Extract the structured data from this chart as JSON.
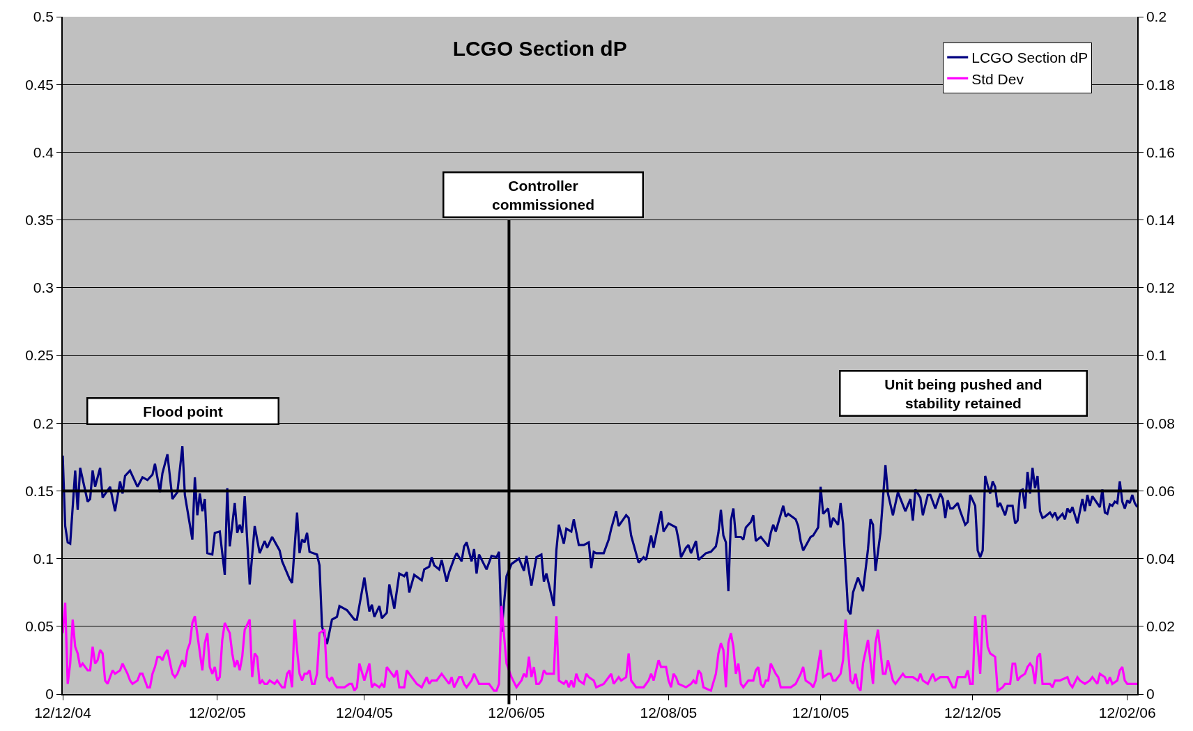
{
  "chart_data": {
    "type": "line",
    "title": "LCGO Section dP",
    "xlim": [
      "2004-12-12",
      "2006-02-16"
    ],
    "xticks": [
      {
        "value": "2004-12-12",
        "label": "12/12/04"
      },
      {
        "value": "2005-02-12",
        "label": "12/02/05"
      },
      {
        "value": "2005-04-12",
        "label": "12/04/05"
      },
      {
        "value": "2005-06-12",
        "label": "12/06/05"
      },
      {
        "value": "2005-08-12",
        "label": "12/08/05"
      },
      {
        "value": "2005-10-12",
        "label": "12/10/05"
      },
      {
        "value": "2005-12-12",
        "label": "12/12/05"
      },
      {
        "value": "2006-02-12",
        "label": "12/02/06"
      }
    ],
    "ylim": [
      0,
      0.5
    ],
    "yticks": [
      0,
      0.05,
      0.1,
      0.15,
      0.2,
      0.25,
      0.3,
      0.35,
      0.4,
      0.45,
      0.5
    ],
    "y2lim": [
      0,
      0.2
    ],
    "y2ticks": [
      0,
      0.02,
      0.04,
      0.06,
      0.08,
      0.1,
      0.12,
      0.14,
      0.16,
      0.18,
      0.2
    ],
    "grid": "y",
    "legend": "top right",
    "line_style": "solid",
    "ref_lines": [
      {
        "axis": "y",
        "value": 0.15,
        "color": "#000000"
      },
      {
        "axis": "x",
        "value": "2005-06-09",
        "color": "#000000"
      }
    ],
    "annotations": [
      "Flood point",
      "Controller commissioned",
      "Unit being pushed and stability retained"
    ],
    "series": [
      {
        "name": "LCGO Section dP",
        "color": "#000080",
        "x": [
          "2004-12-12",
          "2004-12-13",
          "2004-12-14",
          "2004-12-15",
          "2004-12-17",
          "2004-12-18",
          "2004-12-19",
          "2004-12-22",
          "2004-12-23",
          "2004-12-24",
          "2004-12-25",
          "2004-12-27",
          "2004-12-28",
          "2004-12-31",
          "2005-01-02",
          "2005-01-04",
          "2005-01-05",
          "2005-01-06",
          "2005-01-08",
          "2005-01-11",
          "2005-01-13",
          "2005-01-15",
          "2005-01-17",
          "2005-01-18",
          "2005-01-20",
          "2005-01-21",
          "2005-01-23",
          "2005-01-25",
          "2005-01-27",
          "2005-01-29",
          "2005-01-30",
          "2005-02-02",
          "2005-02-03",
          "2005-02-04",
          "2005-02-05",
          "2005-02-06",
          "2005-02-07",
          "2005-02-08",
          "2005-02-10",
          "2005-02-11",
          "2005-02-13",
          "2005-02-15",
          "2005-02-16",
          "2005-02-17",
          "2005-02-19",
          "2005-02-20",
          "2005-02-21",
          "2005-02-22",
          "2005-02-23",
          "2005-02-25",
          "2005-02-27",
          "2005-03-01",
          "2005-03-03",
          "2005-03-04",
          "2005-03-06",
          "2005-03-09",
          "2005-03-10",
          "2005-03-13",
          "2005-03-14",
          "2005-03-16",
          "2005-03-17",
          "2005-03-18",
          "2005-03-19",
          "2005-03-20",
          "2005-03-21",
          "2005-03-24",
          "2005-03-25",
          "2005-03-26",
          "2005-03-28",
          "2005-03-30",
          "2005-04-01",
          "2005-04-02",
          "2005-04-05",
          "2005-04-08",
          "2005-04-09",
          "2005-04-12",
          "2005-04-14",
          "2005-04-15",
          "2005-04-16",
          "2005-04-18",
          "2005-04-19",
          "2005-04-21",
          "2005-04-22",
          "2005-04-24",
          "2005-04-26",
          "2005-04-28",
          "2005-04-29",
          "2005-04-30",
          "2005-05-02",
          "2005-05-05",
          "2005-05-06",
          "2005-05-08",
          "2005-05-09",
          "2005-05-10",
          "2005-05-12",
          "2005-05-13",
          "2005-05-15",
          "2005-05-16",
          "2005-05-18",
          "2005-05-19",
          "2005-05-21",
          "2005-05-22",
          "2005-05-23",
          "2005-05-25",
          "2005-05-26",
          "2005-05-27",
          "2005-05-28",
          "2005-05-31",
          "2005-06-02",
          "2005-06-04",
          "2005-06-05",
          "2005-06-06",
          "2005-06-08",
          "2005-06-10",
          "2005-06-13",
          "2005-06-15",
          "2005-06-16",
          "2005-06-18",
          "2005-06-20",
          "2005-06-22",
          "2005-06-23",
          "2005-06-24",
          "2005-06-27",
          "2005-06-28",
          "2005-06-29",
          "2005-07-01",
          "2005-07-02",
          "2005-07-04",
          "2005-07-05",
          "2005-07-07",
          "2005-07-09",
          "2005-07-11",
          "2005-07-12",
          "2005-07-13",
          "2005-07-14",
          "2005-07-17",
          "2005-07-19",
          "2005-07-20",
          "2005-07-22",
          "2005-07-23",
          "2005-07-26",
          "2005-07-27",
          "2005-07-28",
          "2005-07-31",
          "2005-08-02",
          "2005-08-03",
          "2005-08-05",
          "2005-08-06",
          "2005-08-09",
          "2005-08-10",
          "2005-08-12",
          "2005-08-15",
          "2005-08-16",
          "2005-08-17",
          "2005-08-19",
          "2005-08-20",
          "2005-08-21",
          "2005-08-23",
          "2005-08-24",
          "2005-08-27",
          "2005-08-29",
          "2005-08-31",
          "2005-09-01",
          "2005-09-02",
          "2005-09-03",
          "2005-09-04",
          "2005-09-05",
          "2005-09-06",
          "2005-09-07",
          "2005-09-08",
          "2005-09-10",
          "2005-09-11",
          "2005-09-12",
          "2005-09-14",
          "2005-09-15",
          "2005-09-16",
          "2005-09-18",
          "2005-09-21",
          "2005-09-22",
          "2005-09-23",
          "2005-09-24",
          "2005-09-27",
          "2005-09-28",
          "2005-09-29",
          "2005-10-02",
          "2005-10-03",
          "2005-10-04",
          "2005-10-05",
          "2005-10-08",
          "2005-10-09",
          "2005-10-11",
          "2005-10-12",
          "2005-10-13",
          "2005-10-15",
          "2005-10-16",
          "2005-10-17",
          "2005-10-19",
          "2005-10-20",
          "2005-10-21",
          "2005-10-23",
          "2005-10-24",
          "2005-10-25",
          "2005-10-27",
          "2005-10-29",
          "2005-10-31",
          "2005-11-01",
          "2005-11-02",
          "2005-11-03",
          "2005-11-05",
          "2005-11-07",
          "2005-11-08",
          "2005-11-10",
          "2005-11-12",
          "2005-11-15",
          "2005-11-17",
          "2005-11-18",
          "2005-11-19",
          "2005-11-21",
          "2005-11-22",
          "2005-11-24",
          "2005-11-25",
          "2005-11-27",
          "2005-11-29",
          "2005-11-30",
          "2005-12-01",
          "2005-12-02",
          "2005-12-03",
          "2005-12-04",
          "2005-12-06",
          "2005-12-07",
          "2005-12-09",
          "2005-12-10",
          "2005-12-11",
          "2005-12-13",
          "2005-12-14",
          "2005-12-15",
          "2005-12-16",
          "2005-12-17",
          "2005-12-18",
          "2005-12-19",
          "2005-12-20",
          "2005-12-21",
          "2005-12-22",
          "2005-12-23",
          "2005-12-25",
          "2005-12-26",
          "2005-12-28",
          "2005-12-29",
          "2005-12-30",
          "2005-12-31",
          "2006-01-01",
          "2006-01-02",
          "2006-01-03",
          "2006-01-04",
          "2006-01-05",
          "2006-01-06",
          "2006-01-07",
          "2006-01-08",
          "2006-01-09",
          "2006-01-10",
          "2006-01-12",
          "2006-01-13",
          "2006-01-14",
          "2006-01-15",
          "2006-01-17",
          "2006-01-18",
          "2006-01-19",
          "2006-01-20",
          "2006-01-21",
          "2006-01-23",
          "2006-01-25",
          "2006-01-26",
          "2006-01-27",
          "2006-01-28",
          "2006-01-29",
          "2006-02-01",
          "2006-02-02",
          "2006-02-03",
          "2006-02-04",
          "2006-02-05",
          "2006-02-06",
          "2006-02-07",
          "2006-02-08",
          "2006-02-09",
          "2006-02-10",
          "2006-02-11",
          "2006-02-12",
          "2006-02-13",
          "2006-02-14",
          "2006-02-15",
          "2006-02-16"
        ],
        "values": [
          0.176,
          0.124,
          0.112,
          0.111,
          0.165,
          0.136,
          0.167,
          0.142,
          0.144,
          0.165,
          0.153,
          0.167,
          0.145,
          0.153,
          0.135,
          0.157,
          0.148,
          0.161,
          0.165,
          0.153,
          0.16,
          0.158,
          0.162,
          0.17,
          0.149,
          0.163,
          0.177,
          0.144,
          0.149,
          0.183,
          0.147,
          0.114,
          0.16,
          0.132,
          0.148,
          0.135,
          0.144,
          0.104,
          0.103,
          0.119,
          0.12,
          0.088,
          0.152,
          0.109,
          0.141,
          0.119,
          0.125,
          0.119,
          0.146,
          0.081,
          0.124,
          0.104,
          0.113,
          0.108,
          0.116,
          0.106,
          0.098,
          0.085,
          0.082,
          0.134,
          0.104,
          0.114,
          0.112,
          0.119,
          0.105,
          0.103,
          0.095,
          0.05,
          0.037,
          0.055,
          0.057,
          0.065,
          0.062,
          0.055,
          0.055,
          0.086,
          0.061,
          0.066,
          0.057,
          0.065,
          0.056,
          0.06,
          0.081,
          0.063,
          0.089,
          0.087,
          0.09,
          0.075,
          0.088,
          0.084,
          0.092,
          0.094,
          0.101,
          0.095,
          0.092,
          0.099,
          0.083,
          0.09,
          0.1,
          0.104,
          0.098,
          0.109,
          0.112,
          0.098,
          0.107,
          0.089,
          0.103,
          0.092,
          0.102,
          0.101,
          0.105,
          0.046,
          0.087,
          0.096,
          0.1,
          0.091,
          0.102,
          0.08,
          0.101,
          0.103,
          0.083,
          0.089,
          0.065,
          0.106,
          0.125,
          0.111,
          0.122,
          0.12,
          0.129,
          0.11,
          0.11,
          0.112,
          0.093,
          0.105,
          0.104,
          0.104,
          0.114,
          0.122,
          0.135,
          0.124,
          0.132,
          0.13,
          0.117,
          0.097,
          0.101,
          0.099,
          0.117,
          0.108,
          0.135,
          0.12,
          0.126,
          0.123,
          0.114,
          0.101,
          0.108,
          0.11,
          0.104,
          0.113,
          0.099,
          0.104,
          0.105,
          0.109,
          0.119,
          0.136,
          0.117,
          0.112,
          0.076,
          0.128,
          0.137,
          0.116,
          0.116,
          0.114,
          0.123,
          0.127,
          0.132,
          0.113,
          0.116,
          0.109,
          0.119,
          0.125,
          0.12,
          0.139,
          0.131,
          0.133,
          0.129,
          0.124,
          0.113,
          0.106,
          0.116,
          0.117,
          0.123,
          0.153,
          0.133,
          0.137,
          0.123,
          0.13,
          0.125,
          0.141,
          0.126,
          0.062,
          0.059,
          0.075,
          0.086,
          0.076,
          0.107,
          0.129,
          0.125,
          0.091,
          0.119,
          0.169,
          0.148,
          0.132,
          0.149,
          0.135,
          0.144,
          0.128,
          0.151,
          0.145,
          0.132,
          0.147,
          0.147,
          0.137,
          0.148,
          0.144,
          0.13,
          0.143,
          0.137,
          0.137,
          0.141,
          0.135,
          0.125,
          0.127,
          0.147,
          0.139,
          0.106,
          0.101,
          0.106,
          0.161,
          0.154,
          0.148,
          0.157,
          0.153,
          0.138,
          0.141,
          0.132,
          0.139,
          0.139,
          0.126,
          0.128,
          0.15,
          0.151,
          0.137,
          0.164,
          0.148,
          0.167,
          0.152,
          0.161,
          0.135,
          0.13,
          0.131,
          0.134,
          0.131,
          0.134,
          0.129,
          0.133,
          0.129,
          0.137,
          0.134,
          0.138,
          0.126,
          0.144,
          0.135,
          0.147,
          0.139,
          0.146,
          0.138,
          0.151,
          0.134,
          0.133,
          0.14,
          0.139,
          0.142,
          0.141,
          0.157,
          0.142,
          0.137,
          0.143,
          0.141,
          0.147,
          0.141,
          0.138
        ]
      },
      {
        "name": "Std Dev",
        "color": "#ff00ff",
        "axis": "y2",
        "x": [
          "2004-12-12",
          "2004-12-13",
          "2004-12-14",
          "2004-12-15",
          "2004-12-16",
          "2004-12-17",
          "2004-12-18",
          "2004-12-19",
          "2004-12-20",
          "2004-12-22",
          "2004-12-23",
          "2004-12-24",
          "2004-12-25",
          "2004-12-26",
          "2004-12-27",
          "2004-12-28",
          "2004-12-29",
          "2004-12-30",
          "2005-01-01",
          "2005-01-02",
          "2005-01-04",
          "2005-01-05",
          "2005-01-07",
          "2005-01-08",
          "2005-01-09",
          "2005-01-11",
          "2005-01-12",
          "2005-01-13",
          "2005-01-15",
          "2005-01-16",
          "2005-01-17",
          "2005-01-18",
          "2005-01-19",
          "2005-01-20",
          "2005-01-21",
          "2005-01-22",
          "2005-01-23",
          "2005-01-25",
          "2005-01-26",
          "2005-01-27",
          "2005-01-29",
          "2005-01-30",
          "2005-01-31",
          "2005-02-01",
          "2005-02-02",
          "2005-02-03",
          "2005-02-06",
          "2005-02-07",
          "2005-02-08",
          "2005-02-09",
          "2005-02-10",
          "2005-02-11",
          "2005-02-12",
          "2005-02-13",
          "2005-02-14",
          "2005-02-15",
          "2005-02-17",
          "2005-02-18",
          "2005-02-19",
          "2005-02-20",
          "2005-02-21",
          "2005-02-22",
          "2005-02-23",
          "2005-02-25",
          "2005-02-26",
          "2005-02-27",
          "2005-02-28",
          "2005-03-01",
          "2005-03-02",
          "2005-03-03",
          "2005-03-04",
          "2005-03-05",
          "2005-03-07",
          "2005-03-08",
          "2005-03-09",
          "2005-03-10",
          "2005-03-11",
          "2005-03-12",
          "2005-03-13",
          "2005-03-14",
          "2005-03-15",
          "2005-03-16",
          "2005-03-17",
          "2005-03-18",
          "2005-03-19",
          "2005-03-20",
          "2005-03-21",
          "2005-03-22",
          "2005-03-23",
          "2005-03-24",
          "2005-03-25",
          "2005-03-27",
          "2005-03-28",
          "2005-03-29",
          "2005-03-30",
          "2005-03-31",
          "2005-04-01",
          "2005-04-04",
          "2005-04-06",
          "2005-04-07",
          "2005-04-08",
          "2005-04-09",
          "2005-04-10",
          "2005-04-12",
          "2005-04-14",
          "2005-04-15",
          "2005-04-16",
          "2005-04-18",
          "2005-04-19",
          "2005-04-20",
          "2005-04-21",
          "2005-04-23",
          "2005-04-24",
          "2005-04-25",
          "2005-04-26",
          "2005-04-28",
          "2005-04-29",
          "2005-04-30",
          "2005-05-02",
          "2005-05-03",
          "2005-05-05",
          "2005-05-07",
          "2005-05-08",
          "2005-05-09",
          "2005-05-11",
          "2005-05-13",
          "2005-05-16",
          "2005-05-17",
          "2005-05-18",
          "2005-05-20",
          "2005-05-21",
          "2005-05-22",
          "2005-05-23",
          "2005-05-25",
          "2005-05-26",
          "2005-05-28",
          "2005-05-30",
          "2005-06-01",
          "2005-06-03",
          "2005-06-04",
          "2005-06-05",
          "2005-06-06",
          "2005-06-08",
          "2005-06-10",
          "2005-06-12",
          "2005-06-14",
          "2005-06-15",
          "2005-06-16",
          "2005-06-17",
          "2005-06-18",
          "2005-06-19",
          "2005-06-20",
          "2005-06-21",
          "2005-06-22",
          "2005-06-23",
          "2005-06-24",
          "2005-06-26",
          "2005-06-27",
          "2005-06-28",
          "2005-06-29",
          "2005-07-01",
          "2005-07-02",
          "2005-07-03",
          "2005-07-04",
          "2005-07-05",
          "2005-07-06",
          "2005-07-07",
          "2005-07-09",
          "2005-07-10",
          "2005-07-11",
          "2005-07-13",
          "2005-07-14",
          "2005-07-17",
          "2005-07-19",
          "2005-07-20",
          "2005-07-21",
          "2005-07-23",
          "2005-07-24",
          "2005-07-26",
          "2005-07-27",
          "2005-07-28",
          "2005-07-30",
          "2005-08-01",
          "2005-08-02",
          "2005-08-04",
          "2005-08-05",
          "2005-08-06",
          "2005-08-08",
          "2005-08-09",
          "2005-08-11",
          "2005-08-12",
          "2005-08-13",
          "2005-08-14",
          "2005-08-15",
          "2005-08-16",
          "2005-08-19",
          "2005-08-21",
          "2005-08-22",
          "2005-08-23",
          "2005-08-24",
          "2005-08-25",
          "2005-08-26",
          "2005-08-29",
          "2005-08-31",
          "2005-09-01",
          "2005-09-02",
          "2005-09-03",
          "2005-09-04",
          "2005-09-05",
          "2005-09-06",
          "2005-09-07",
          "2005-09-08",
          "2005-09-09",
          "2005-09-10",
          "2005-09-11",
          "2005-09-13",
          "2005-09-14",
          "2005-09-15",
          "2005-09-16",
          "2005-09-17",
          "2005-09-18",
          "2005-09-19",
          "2005-09-20",
          "2005-09-21",
          "2005-09-22",
          "2005-09-24",
          "2005-09-25",
          "2005-09-26",
          "2005-09-27",
          "2005-09-30",
          "2005-10-02",
          "2005-10-04",
          "2005-10-05",
          "2005-10-06",
          "2005-10-08",
          "2005-10-09",
          "2005-10-10",
          "2005-10-12",
          "2005-10-13",
          "2005-10-15",
          "2005-10-16",
          "2005-10-17",
          "2005-10-18",
          "2005-10-20",
          "2005-10-21",
          "2005-10-22",
          "2005-10-24",
          "2005-10-25",
          "2005-10-26",
          "2005-10-27",
          "2005-10-28",
          "2005-10-29",
          "2005-10-31",
          "2005-11-02",
          "2005-11-03",
          "2005-11-04",
          "2005-11-06",
          "2005-11-07",
          "2005-11-08",
          "2005-11-10",
          "2005-11-11",
          "2005-11-14",
          "2005-11-15",
          "2005-11-18",
          "2005-11-20",
          "2005-11-21",
          "2005-11-22",
          "2005-11-24",
          "2005-11-26",
          "2005-11-27",
          "2005-11-29",
          "2005-12-02",
          "2005-12-04",
          "2005-12-05",
          "2005-12-06",
          "2005-12-07",
          "2005-12-09",
          "2005-12-10",
          "2005-12-11",
          "2005-12-12",
          "2005-12-13",
          "2005-12-15",
          "2005-12-16",
          "2005-12-17",
          "2005-12-18",
          "2005-12-19",
          "2005-12-21",
          "2005-12-22",
          "2005-12-24",
          "2005-12-25",
          "2005-12-27",
          "2005-12-28",
          "2005-12-29",
          "2005-12-30",
          "2005-12-31",
          "2006-01-02",
          "2006-01-03",
          "2006-01-04",
          "2006-01-05",
          "2006-01-06",
          "2006-01-07",
          "2006-01-08",
          "2006-01-09",
          "2006-01-12",
          "2006-01-13",
          "2006-01-14",
          "2006-01-16",
          "2006-01-19",
          "2006-01-20",
          "2006-01-21",
          "2006-01-23",
          "2006-01-24",
          "2006-01-26",
          "2006-01-28",
          "2006-01-29",
          "2006-01-31",
          "2006-02-01",
          "2006-02-03",
          "2006-02-04",
          "2006-02-05",
          "2006-02-06",
          "2006-02-08",
          "2006-02-09",
          "2006-02-10",
          "2006-02-11",
          "2006-02-12",
          "2006-02-14",
          "2006-02-16"
        ],
        "values": [
          0.018,
          0.027,
          0.003,
          0.009,
          0.022,
          0.014,
          0.012,
          0.008,
          0.009,
          0.007,
          0.007,
          0.014,
          0.009,
          0.01,
          0.013,
          0.012,
          0.004,
          0.003,
          0.007,
          0.006,
          0.007,
          0.009,
          0.006,
          0.004,
          0.003,
          0.004,
          0.006,
          0.006,
          0.002,
          0.002,
          0.006,
          0.008,
          0.011,
          0.011,
          0.01,
          0.012,
          0.013,
          0.006,
          0.005,
          0.006,
          0.01,
          0.008,
          0.013,
          0.015,
          0.021,
          0.023,
          0.007,
          0.015,
          0.018,
          0.008,
          0.006,
          0.008,
          0.004,
          0.005,
          0.016,
          0.021,
          0.018,
          0.012,
          0.008,
          0.01,
          0.007,
          0.011,
          0.019,
          0.022,
          0.005,
          0.012,
          0.011,
          0.003,
          0.004,
          0.003,
          0.003,
          0.004,
          0.003,
          0.004,
          0.003,
          0.002,
          0.002,
          0.006,
          0.007,
          0.002,
          0.022,
          0.013,
          0.006,
          0.004,
          0.006,
          0.006,
          0.007,
          0.003,
          0.003,
          0.006,
          0.018,
          0.019,
          0.005,
          0.004,
          0.005,
          0.003,
          0.002,
          0.002,
          0.003,
          0.003,
          0.001,
          0.002,
          0.009,
          0.004,
          0.009,
          0.002,
          0.003,
          0.002,
          0.003,
          0.002,
          0.008,
          0.006,
          0.005,
          0.007,
          0.002,
          0.002,
          0.007,
          0.006,
          0.004,
          0.003,
          0.002,
          0.005,
          0.003,
          0.004,
          0.004,
          0.006,
          0.003,
          0.005,
          0.002,
          0.005,
          0.005,
          0.003,
          0.002,
          0.004,
          0.006,
          0.003,
          0.003,
          0.003,
          0.001,
          0.001,
          0.003,
          0.026,
          0.009,
          0.005,
          0.002,
          0.004,
          0.006,
          0.005,
          0.011,
          0.005,
          0.008,
          0.003,
          0.003,
          0.004,
          0.007,
          0.006,
          0.006,
          0.006,
          0.023,
          0.004,
          0.003,
          0.004,
          0.002,
          0.004,
          0.002,
          0.006,
          0.004,
          0.003,
          0.006,
          0.005,
          0.004,
          0.002,
          0.003,
          0.005,
          0.006,
          0.003,
          0.005,
          0.004,
          0.005,
          0.012,
          0.004,
          0.002,
          0.002,
          0.002,
          0.004,
          0.006,
          0.004,
          0.01,
          0.008,
          0.008,
          0.004,
          0.002,
          0.006,
          0.005,
          0.003,
          0.002,
          0.003,
          0.004,
          0.003,
          0.007,
          0.006,
          0.002,
          0.001,
          0.006,
          0.012,
          0.015,
          0.013,
          0.002,
          0.015,
          0.018,
          0.014,
          0.006,
          0.009,
          0.003,
          0.002,
          0.004,
          0.004,
          0.004,
          0.007,
          0.008,
          0.003,
          0.002,
          0.004,
          0.004,
          0.009,
          0.006,
          0.005,
          0.002,
          0.002,
          0.002,
          0.003,
          0.006,
          0.008,
          0.004,
          0.003,
          0.002,
          0.004,
          0.013,
          0.005,
          0.006,
          0.006,
          0.004,
          0.004,
          0.006,
          0.01,
          0.022,
          0.004,
          0.003,
          0.006,
          0.002,
          0.001,
          0.009,
          0.016,
          0.003,
          0.015,
          0.019,
          0.006,
          0.006,
          0.01,
          0.004,
          0.003,
          0.006,
          0.005,
          0.005,
          0.004,
          0.006,
          0.004,
          0.003,
          0.006,
          0.004,
          0.005,
          0.005,
          0.002,
          0.002,
          0.005,
          0.005,
          0.005,
          0.007,
          0.003,
          0.003,
          0.023,
          0.006,
          0.023,
          0.023,
          0.014,
          0.012,
          0.011,
          0.001,
          0.002,
          0.003,
          0.003,
          0.009,
          0.009,
          0.004,
          0.005,
          0.006,
          0.008,
          0.009,
          0.008,
          0.003,
          0.011,
          0.012,
          0.003,
          0.003,
          0.002,
          0.004,
          0.004,
          0.005,
          0.003,
          0.002,
          0.005,
          0.004,
          0.003,
          0.004,
          0.005,
          0.003,
          0.006,
          0.005,
          0.003,
          0.005,
          0.003,
          0.004,
          0.007,
          0.008,
          0.004,
          0.003,
          0.003,
          0.003
        ]
      }
    ]
  }
}
